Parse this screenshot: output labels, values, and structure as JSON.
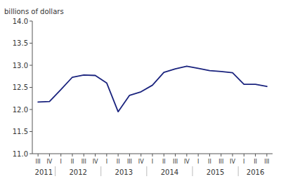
{
  "chart_data": {
    "type": "line",
    "ylabel": "billions of dollars",
    "categories": [
      "III",
      "IV",
      "I",
      "II",
      "III",
      "IV",
      "I",
      "II",
      "III",
      "IV",
      "I",
      "II",
      "III",
      "IV",
      "I",
      "II",
      "III",
      "IV",
      "I",
      "II",
      "III"
    ],
    "values": [
      12.17,
      12.18,
      12.45,
      12.73,
      12.78,
      12.77,
      12.6,
      11.95,
      12.32,
      12.4,
      12.55,
      12.84,
      12.92,
      12.98,
      12.93,
      12.88,
      12.86,
      12.83,
      12.57,
      12.57,
      12.52
    ],
    "year_labels": [
      "2011",
      "2012",
      "2013",
      "2014",
      "2015",
      "2016"
    ],
    "color": "#1a237e",
    "ylim": [
      11.0,
      14.0
    ],
    "yticks": [
      {
        "value": 11.0,
        "label": "11.0"
      },
      {
        "value": 11.5,
        "label": "11.5"
      },
      {
        "value": 12.0,
        "label": "12.0"
      },
      {
        "value": 12.5,
        "label": "12.5"
      },
      {
        "value": 13.0,
        "label": "13.0"
      },
      {
        "value": 13.5,
        "label": "13.5"
      },
      {
        "value": 14.0,
        "label": "14.0"
      }
    ],
    "grid": false
  }
}
